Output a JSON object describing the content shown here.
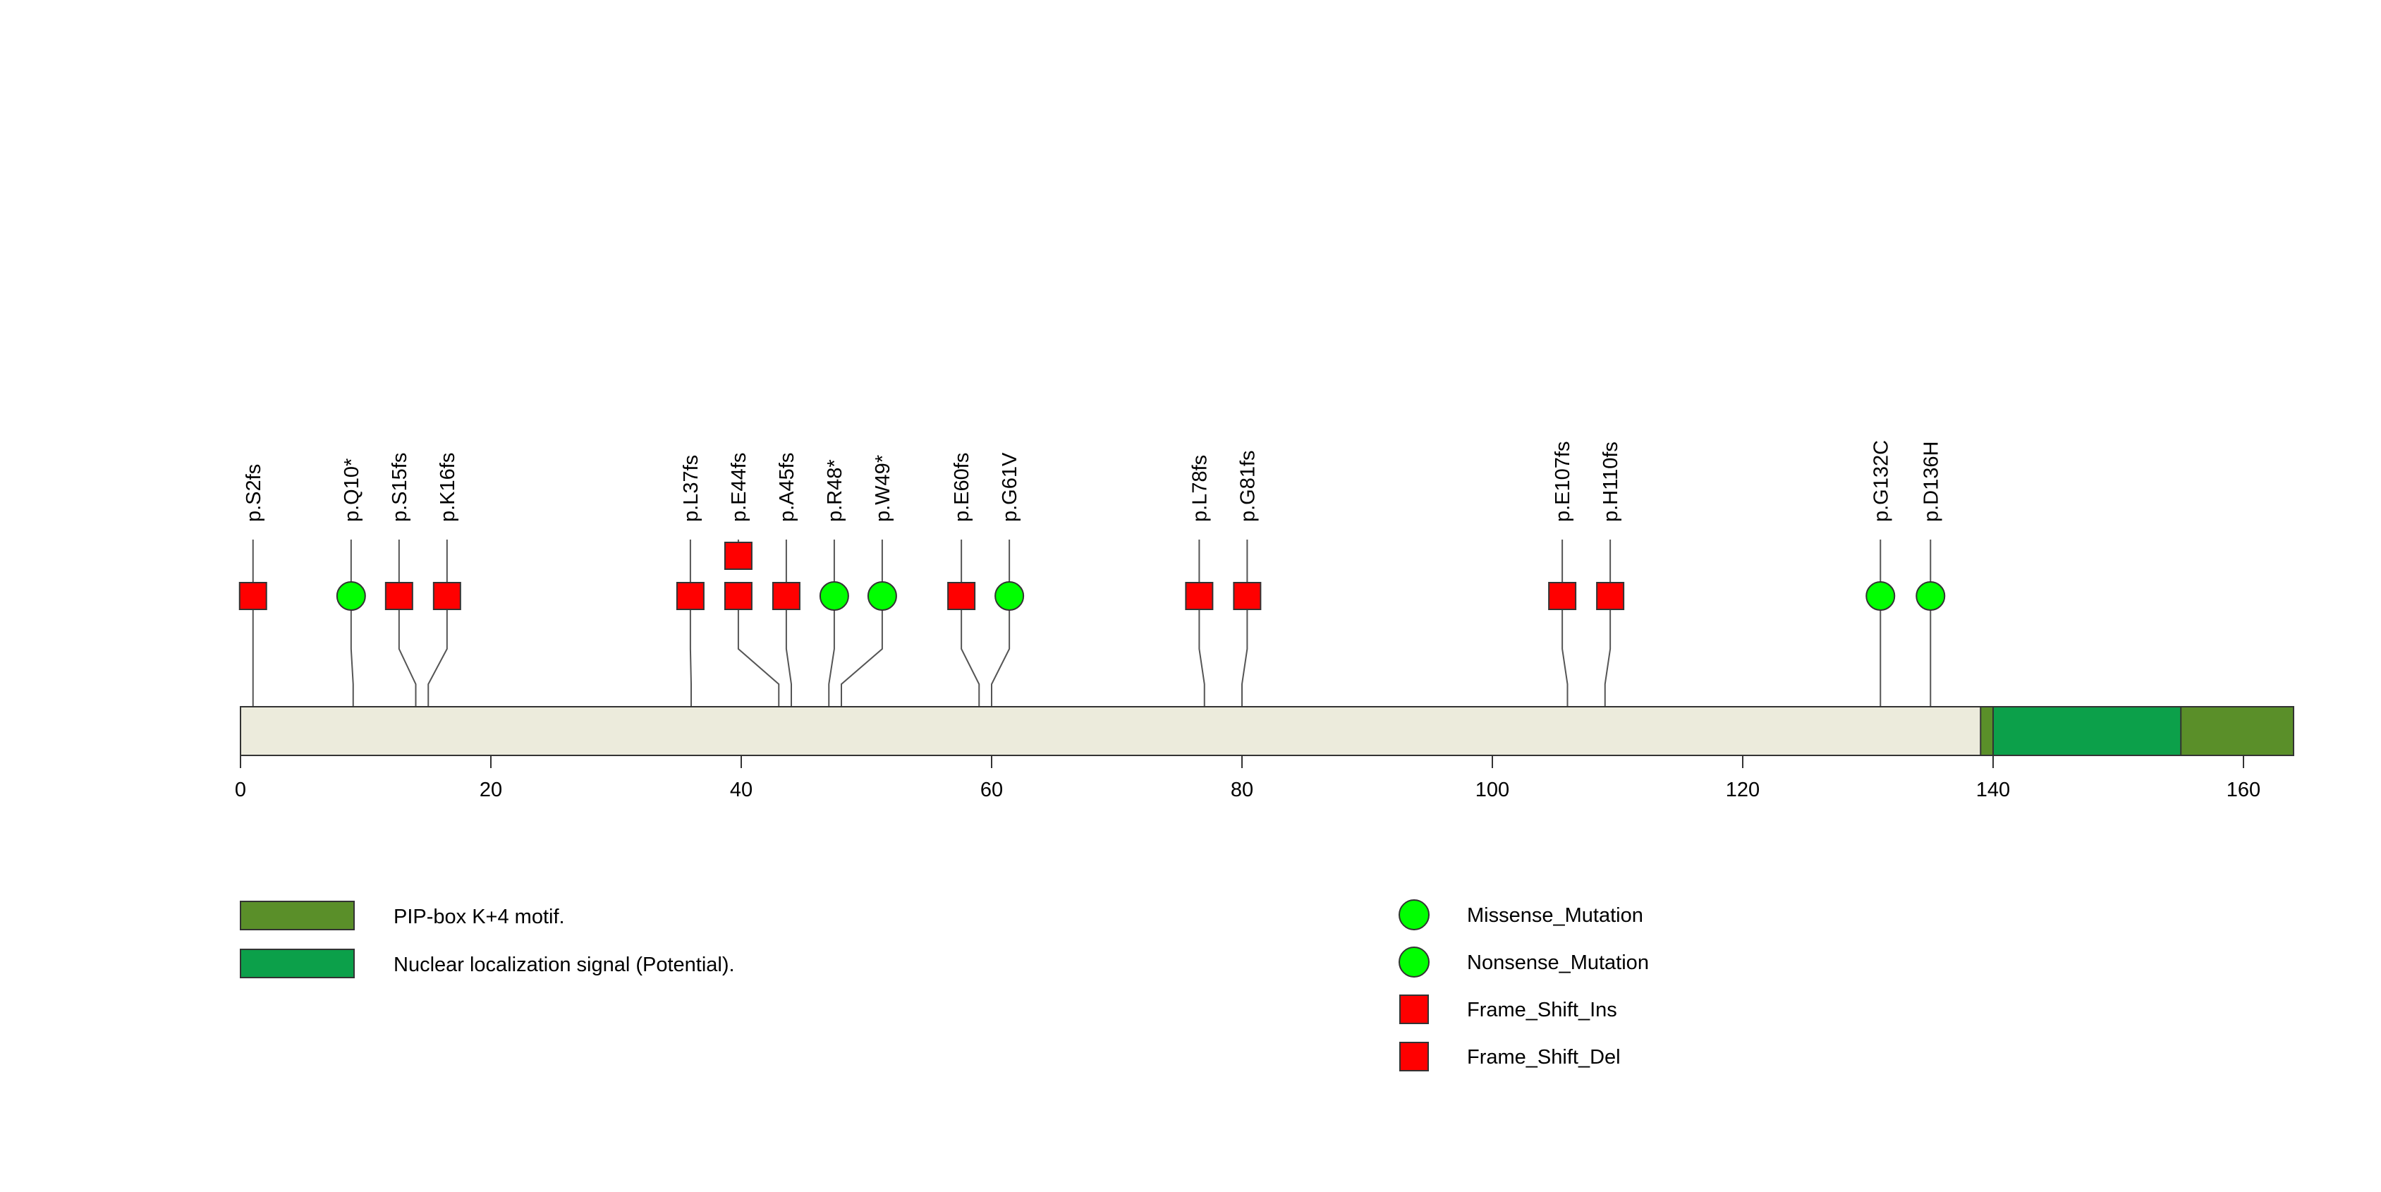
{
  "chart_data": {
    "type": "lollipop",
    "title": "",
    "xlabel": "",
    "ylabel": "",
    "protein_length": 164,
    "xlim": [
      0,
      164
    ],
    "x_ticks": [
      0,
      20,
      40,
      60,
      80,
      100,
      120,
      140,
      160
    ],
    "domains": [
      {
        "name": "PIP-box K+4 motif.",
        "start": 139,
        "end": 164,
        "color": "#5a8f29"
      },
      {
        "name": "Nuclear localization signal (Potential).",
        "start": 140,
        "end": 155,
        "color": "#0ca04a"
      }
    ],
    "mutations": [
      {
        "label": "p.S2fs",
        "position": 1,
        "type": "Frame_Shift_Del",
        "count": 1
      },
      {
        "label": "p.Q10*",
        "position": 9,
        "type": "Nonsense_Mutation",
        "count": 1
      },
      {
        "label": "p.S15fs",
        "position": 14,
        "type": "Frame_Shift_Del",
        "count": 1
      },
      {
        "label": "p.K16fs",
        "position": 15,
        "type": "Frame_Shift_Del",
        "count": 1
      },
      {
        "label": "p.L37fs",
        "position": 36,
        "type": "Frame_Shift_Del",
        "count": 1
      },
      {
        "label": "p.E44fs",
        "position": 43,
        "type": "Frame_Shift_Del",
        "count": 2
      },
      {
        "label": "p.A45fs",
        "position": 44,
        "type": "Frame_Shift_Del",
        "count": 1
      },
      {
        "label": "p.R48*",
        "position": 47,
        "type": "Nonsense_Mutation",
        "count": 1
      },
      {
        "label": "p.W49*",
        "position": 48,
        "type": "Nonsense_Mutation",
        "count": 1
      },
      {
        "label": "p.E60fs",
        "position": 59,
        "type": "Frame_Shift_Del",
        "count": 1
      },
      {
        "label": "p.G61V",
        "position": 60,
        "type": "Missense_Mutation",
        "count": 1
      },
      {
        "label": "p.L78fs",
        "position": 77,
        "type": "Frame_Shift_Del",
        "count": 1
      },
      {
        "label": "p.G81fs",
        "position": 80,
        "type": "Frame_Shift_Del",
        "count": 1
      },
      {
        "label": "p.E107fs",
        "position": 106,
        "type": "Frame_Shift_Del",
        "count": 1
      },
      {
        "label": "p.H110fs",
        "position": 109,
        "type": "Frame_Shift_Del",
        "count": 1
      },
      {
        "label": "p.G132C",
        "position": 131,
        "type": "Missense_Mutation",
        "count": 1
      },
      {
        "label": "p.D136H",
        "position": 135,
        "type": "Missense_Mutation",
        "count": 1
      }
    ],
    "legend_domains": [
      {
        "name": "PIP-box K+4 motif.",
        "color": "#5a8f29"
      },
      {
        "name": "Nuclear localization signal (Potential).",
        "color": "#0ca04a"
      }
    ],
    "legend_mutations": [
      {
        "name": "Missense_Mutation",
        "shape": "circle",
        "color": "#00ff00"
      },
      {
        "name": "Nonsense_Mutation",
        "shape": "circle",
        "color": "#00ff00"
      },
      {
        "name": "Frame_Shift_Ins",
        "shape": "square",
        "color": "#ff0000"
      },
      {
        "name": "Frame_Shift_Del",
        "shape": "square",
        "color": "#ff0000"
      }
    ],
    "colors": {
      "protein_bar": "#ecebdc",
      "stroke": "#333333",
      "stem": "#555555"
    }
  }
}
